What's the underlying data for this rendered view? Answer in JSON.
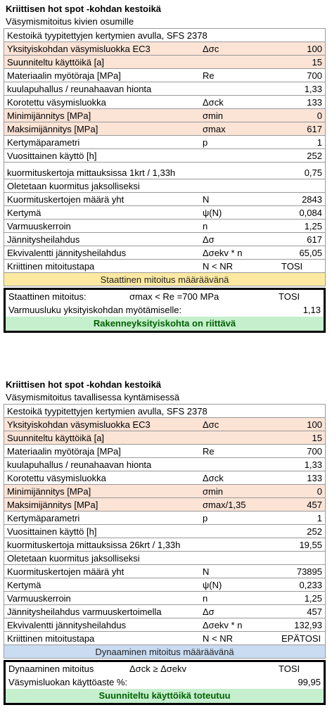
{
  "section1": {
    "title": "Kriittisen hot spot -kohdan kestoikä",
    "subtitle": "Väsymismitoitus kivien osumille",
    "rows": [
      {
        "label": "Kestoikä tyypitettyjen kertymien avulla, SFS 2378",
        "sym": "",
        "val": ""
      },
      {
        "label": "Yksityiskohdan väsymisluokka EC3",
        "sym": "Δσc",
        "val": "100"
      },
      {
        "label": "Suunniteltu käyttöikä [a]",
        "sym": "",
        "val": "15"
      },
      {
        "label": "Materiaalin myötöraja [MPa]",
        "sym": "Re",
        "val": "700"
      },
      {
        "label": "kuulapuhallus / reunahaavan hionta",
        "sym": "",
        "val": "1,33"
      },
      {
        "label": "Korotettu väsymisluokka",
        "sym": "Δσck",
        "val": "133"
      },
      {
        "label": "Minimijännitys [MPa]",
        "sym": "σmin",
        "val": "0"
      },
      {
        "label": "Maksimijännitys [MPa]",
        "sym": "σmax",
        "val": "617"
      },
      {
        "label": "Kertymäparametri",
        "sym": "p",
        "val": "1"
      },
      {
        "label": "Vuosittainen käyttö [h]",
        "sym": "",
        "val": "252"
      },
      {
        "label": "kuormituskertoja mittauksissa 1krt / 1,33h",
        "sym": "",
        "val": "0,75"
      },
      {
        "label": "Oletetaan kuormitus jaksolliseksi",
        "sym": "",
        "val": ""
      },
      {
        "label": "Kuormituskertojen määrä yht",
        "sym": "N",
        "val": "2843"
      },
      {
        "label": "Kertymä",
        "sym": "ψ(N)",
        "val": "0,084"
      },
      {
        "label": "Varmuuskerroin",
        "sym": "n",
        "val": "1,25"
      },
      {
        "label": "Jännitysheilahdus",
        "sym": "Δσ",
        "val": "617"
      },
      {
        "label": "Ekvivalentti jännitysheilahdus",
        "sym": "Δσekv * n",
        "val": "65,05"
      },
      {
        "label": "Kriittinen mitoitustapa",
        "sym": "N < NR",
        "tosi": "TOSI"
      }
    ],
    "banner": "Staattinen mitoitus määräävänä",
    "box": {
      "line1_label": "Staattinen mitoitus:",
      "line1_sym": "σmax < Re =700 MPa",
      "line1_tosi": "TOSI",
      "line2_label": "Varmuusluku yksityiskohdan myötämiselle:",
      "line2_val": "1,13",
      "result": "Rakenneyksityiskohta on riittävä"
    }
  },
  "section2": {
    "title": "Kriittisen hot spot -kohdan kestoikä",
    "subtitle": "Väsymismitoitus tavallisessa kyntämisessä",
    "rows": [
      {
        "label": "Kestoikä tyypitettyjen kertymien avulla, SFS 2378",
        "sym": "",
        "val": ""
      },
      {
        "label": "Yksityiskohdan väsymisluokka EC3",
        "sym": "Δσc",
        "val": "100"
      },
      {
        "label": "Suunniteltu käyttöikä [a]",
        "sym": "",
        "val": "15"
      },
      {
        "label": "Materiaalin myötöraja [MPa]",
        "sym": "Re",
        "val": "700"
      },
      {
        "label": "kuulapuhallus / reunahaavan hionta",
        "sym": "",
        "val": "1,33"
      },
      {
        "label": "Korotettu väsymisluokka",
        "sym": "Δσck",
        "val": "133"
      },
      {
        "label": "Minimijännitys [MPa]",
        "sym": "σmin",
        "val": "0"
      },
      {
        "label": "Maksimijännitys [MPa]",
        "sym": "σmax/1,35",
        "val": "457"
      },
      {
        "label": "Kertymäparametri",
        "sym": "p",
        "val": "1"
      },
      {
        "label": "Vuosittainen käyttö [h]",
        "sym": "",
        "val": "252"
      },
      {
        "label": "kuormituskertoja mittauksissa 26krt / 1,33h",
        "sym": "",
        "val": "19,55"
      },
      {
        "label": "Oletetaan kuormitus jaksolliseksi",
        "sym": "",
        "val": ""
      },
      {
        "label": "Kuormituskertojen määrä yht",
        "sym": "N",
        "val": "73895"
      },
      {
        "label": "Kertymä",
        "sym": "ψ(N)",
        "val": "0,233"
      },
      {
        "label": "Varmuuskerroin",
        "sym": "n",
        "val": "1,25"
      },
      {
        "label": "Jännitysheilahdus varmuuskertoimella",
        "sym": "Δσ",
        "val": "457"
      },
      {
        "label": "Ekvivalentti jännitysheilahdus",
        "sym": "Δσekv * n",
        "val": "132,93"
      },
      {
        "label": "Kriittinen mitoitustapa",
        "sym": "N < NR",
        "tosi": "EPÄTOSI"
      }
    ],
    "banner": "Dynaaminen mitoitus määräävänä",
    "box": {
      "line1_label": "Dynaaminen mitoitus",
      "line1_sym": "Δσck ≥ Δσekv",
      "line1_tosi": "TOSI",
      "line2_label": "Väsymisluokan käyttöaste %:",
      "line2_val": "99,95",
      "result": "Suunniteltu käyttöikä toteutuu"
    }
  },
  "colors": {
    "highlight_row": "#fbe3d6",
    "static_banner": "#fde9a2",
    "dynamic_banner": "#c9dcf1",
    "result_fill": "#c6efce",
    "result_text": "#006100"
  }
}
